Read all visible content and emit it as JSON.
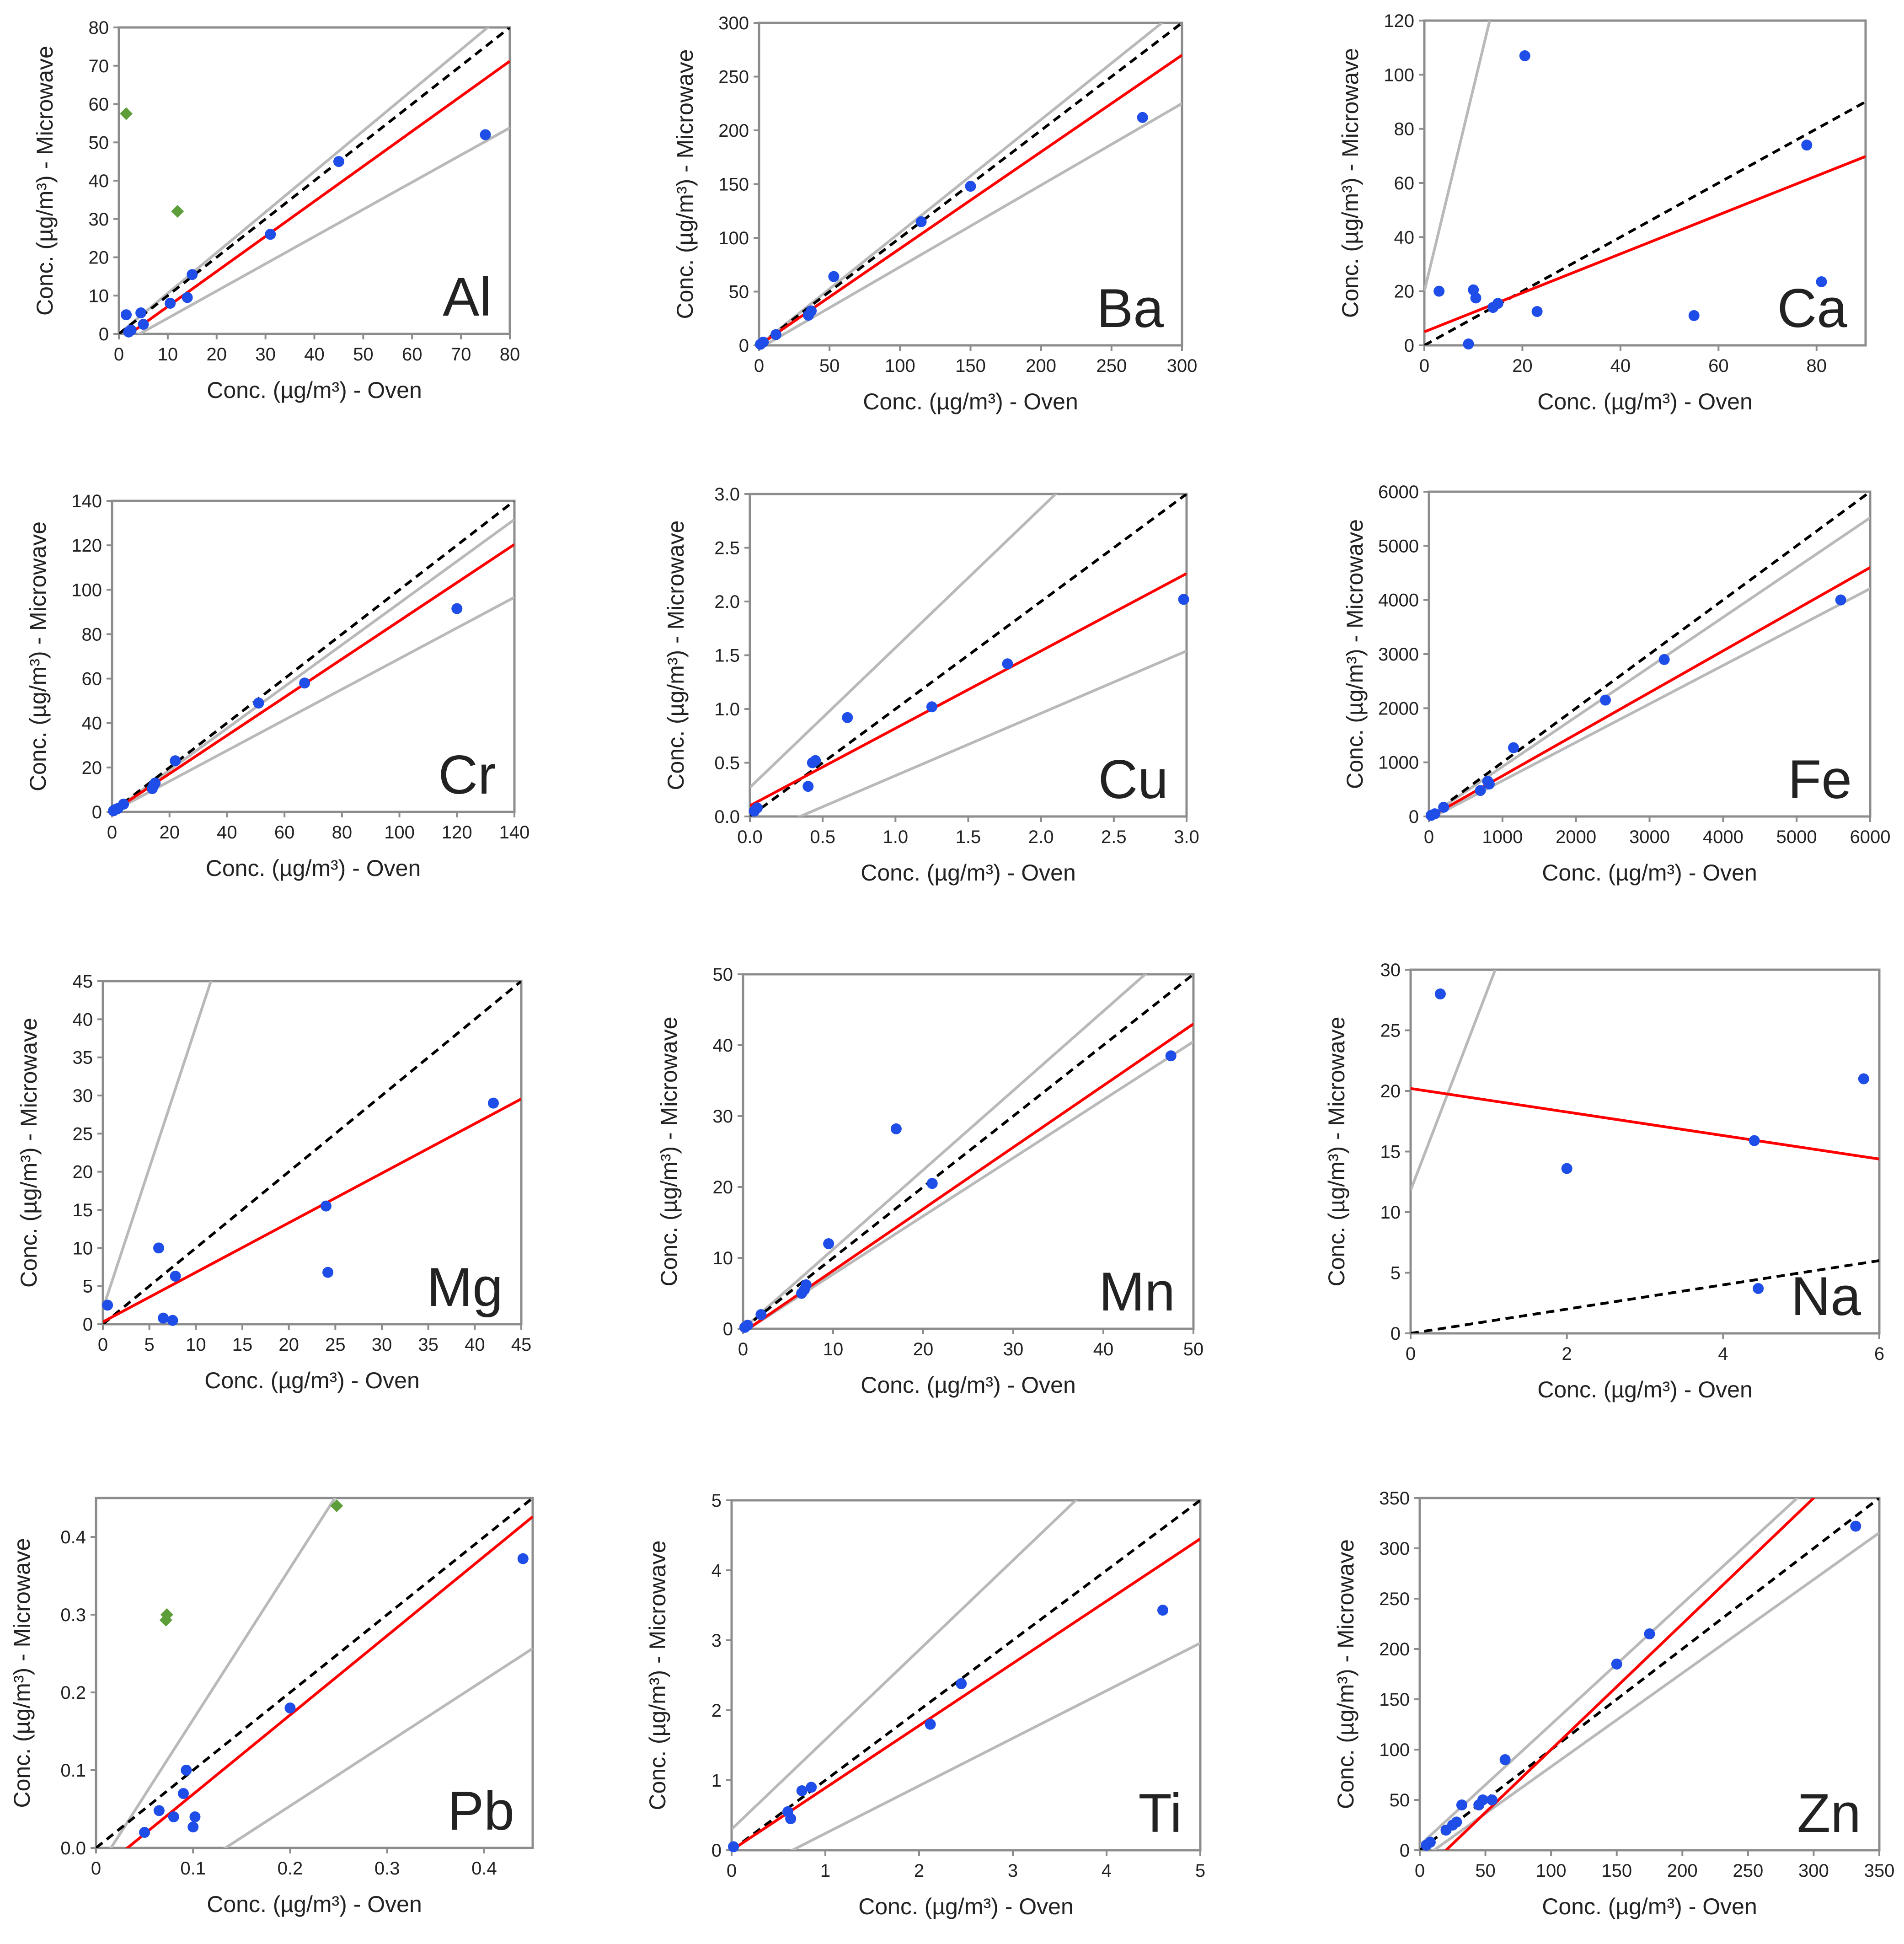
{
  "page": {
    "description_none": ""
  },
  "styles": {
    "frame_color": "#8c8c8c",
    "fit_color": "#ff0000",
    "identity_color": "#000000",
    "bound_color": "#b9b9b9",
    "point_color": "#1f4de8",
    "outlier_color": "#5e9e3a"
  },
  "chart_data": [
    {
      "type": "scatter",
      "element": "Al",
      "xlabel": "Conc. (µg/m³) - Oven",
      "ylabel": "Conc. (µg/m³) - Microwave",
      "xlim": [
        0,
        80
      ],
      "ylim": [
        0,
        80
      ],
      "xticks": [
        0,
        10,
        20,
        30,
        40,
        50,
        60,
        70,
        80
      ],
      "yticks": [
        0,
        10,
        20,
        30,
        40,
        50,
        60,
        70,
        80
      ],
      "tick_labels_x": [
        "0",
        "10",
        "20",
        "30",
        "40",
        "50",
        "60",
        "70",
        "80"
      ],
      "tick_labels_y": [
        "0",
        "10",
        "20",
        "30",
        "40",
        "50",
        "60",
        "70",
        "80"
      ],
      "points": [
        [
          1.5,
          5
        ],
        [
          2,
          0.5
        ],
        [
          2.5,
          1
        ],
        [
          4.5,
          5.5
        ],
        [
          5,
          2.5
        ],
        [
          10.5,
          8
        ],
        [
          14,
          9.5
        ],
        [
          15,
          15.5
        ],
        [
          31,
          26
        ],
        [
          45,
          45
        ],
        [
          75,
          52
        ]
      ],
      "outliers": [
        [
          1.5,
          57.5
        ],
        [
          12,
          32
        ]
      ],
      "fit": {
        "slope": 0.915,
        "intercept": -2
      },
      "upper": {
        "slope": 1.06,
        "intercept": 0
      },
      "lower": {
        "slope": 0.71,
        "intercept": -3
      }
    },
    {
      "type": "scatter",
      "element": "Ba",
      "xlabel": "Conc. (µg/m³) - Oven",
      "ylabel": "Conc. (µg/m³) - Microwave",
      "xlim": [
        0,
        300
      ],
      "ylim": [
        0,
        300
      ],
      "xticks": [
        0,
        50,
        100,
        150,
        200,
        250,
        300
      ],
      "yticks": [
        0,
        50,
        100,
        150,
        200,
        250,
        300
      ],
      "tick_labels_x": [
        "0",
        "50",
        "100",
        "150",
        "200",
        "250",
        "300"
      ],
      "tick_labels_y": [
        "0",
        "50",
        "100",
        "150",
        "200",
        "250",
        "300"
      ],
      "points": [
        [
          1,
          1
        ],
        [
          3,
          3
        ],
        [
          12,
          10
        ],
        [
          35,
          28
        ],
        [
          37,
          32
        ],
        [
          53,
          64
        ],
        [
          115,
          115
        ],
        [
          150,
          148
        ],
        [
          272,
          212
        ]
      ],
      "outliers": [],
      "fit": {
        "slope": 0.9,
        "intercept": 0
      },
      "upper": {
        "slope": 1.05,
        "intercept": 0
      },
      "lower": {
        "slope": 0.76,
        "intercept": -3
      }
    },
    {
      "type": "scatter",
      "element": "Ca",
      "xlabel": "Conc. (µg/m³) - Oven",
      "ylabel": "Conc. (µg/m³) - Microwave",
      "xlim": [
        0,
        90
      ],
      "ylim": [
        0,
        120
      ],
      "xticks": [
        0,
        20,
        40,
        60,
        80
      ],
      "yticks": [
        0,
        20,
        40,
        60,
        80,
        100,
        120
      ],
      "tick_labels_x": [
        "0",
        "20",
        "40",
        "60",
        "80"
      ],
      "tick_labels_y": [
        "0",
        "20",
        "40",
        "60",
        "80",
        "100",
        "120"
      ],
      "points": [
        [
          3,
          20
        ],
        [
          9,
          0.5
        ],
        [
          10,
          20.5
        ],
        [
          10.5,
          17.5
        ],
        [
          14,
          14
        ],
        [
          15,
          15.5
        ],
        [
          20.5,
          107
        ],
        [
          23,
          12.5
        ],
        [
          55,
          11
        ],
        [
          78,
          74
        ],
        [
          81,
          23.5
        ]
      ],
      "outliers": [],
      "fit": {
        "slope": 0.72,
        "intercept": 5
      },
      "upper": {
        "slope": 7.5,
        "intercept": 20
      },
      "lower": {
        "slope": -1,
        "intercept": 0
      }
    },
    {
      "type": "scatter",
      "element": "Cr",
      "xlabel": "Conc. (µg/m³) - Oven",
      "ylabel": "Conc. (µg/m³) - Microwave",
      "xlim": [
        0,
        140
      ],
      "ylim": [
        0,
        140
      ],
      "xticks": [
        0,
        20,
        40,
        60,
        80,
        100,
        120,
        140
      ],
      "yticks": [
        0,
        20,
        40,
        60,
        80,
        100,
        120,
        140
      ],
      "tick_labels_x": [
        "0",
        "20",
        "40",
        "60",
        "80",
        "100",
        "120",
        "140"
      ],
      "tick_labels_y": [
        "0",
        "20",
        "40",
        "60",
        "80",
        "100",
        "120",
        "140"
      ],
      "points": [
        [
          0.5,
          0.5
        ],
        [
          1,
          1
        ],
        [
          2,
          1.5
        ],
        [
          4,
          3.5
        ],
        [
          14,
          10.5
        ],
        [
          14.5,
          12
        ],
        [
          15,
          13
        ],
        [
          22,
          23
        ],
        [
          51,
          49
        ],
        [
          67,
          58
        ],
        [
          120,
          91.5
        ]
      ],
      "outliers": [],
      "fit": {
        "slope": 0.86,
        "intercept": 0
      },
      "upper": {
        "slope": 0.94,
        "intercept": 0
      },
      "lower": {
        "slope": 0.69,
        "intercept": 0
      }
    },
    {
      "type": "scatter",
      "element": "Cu",
      "xlabel": "Conc. (µg/m³) - Oven",
      "ylabel": "Conc. (µg/m³) - Microwave",
      "xlim": [
        0,
        3
      ],
      "ylim": [
        0,
        3
      ],
      "xticks": [
        0,
        0.5,
        1,
        1.5,
        2,
        2.5,
        3
      ],
      "yticks": [
        0,
        0.5,
        1,
        1.5,
        2,
        2.5,
        3
      ],
      "tick_labels_x": [
        "0.0",
        "0.5",
        "1.0",
        "1.5",
        "2.0",
        "2.5",
        "3.0"
      ],
      "tick_labels_y": [
        "0.0",
        "0.5",
        "1.0",
        "1.5",
        "2.0",
        "2.5",
        "3.0"
      ],
      "points": [
        [
          0.03,
          0.05
        ],
        [
          0.05,
          0.08
        ],
        [
          0.4,
          0.28
        ],
        [
          0.43,
          0.5
        ],
        [
          0.45,
          0.52
        ],
        [
          0.67,
          0.92
        ],
        [
          1.25,
          1.02
        ],
        [
          1.77,
          1.42
        ],
        [
          2.98,
          2.02
        ]
      ],
      "outliers": [],
      "fit": {
        "slope": 0.72,
        "intercept": 0.1
      },
      "upper": {
        "slope": 1.3,
        "intercept": 0.27
      },
      "lower": {
        "slope": 0.58,
        "intercept": -0.2
      }
    },
    {
      "type": "scatter",
      "element": "Fe",
      "xlabel": "Conc. (µg/m³) - Oven",
      "ylabel": "Conc. (µg/m³) - Microwave",
      "xlim": [
        0,
        6000
      ],
      "ylim": [
        0,
        6000
      ],
      "xticks": [
        0,
        1000,
        2000,
        3000,
        4000,
        5000,
        6000
      ],
      "yticks": [
        0,
        1000,
        2000,
        3000,
        4000,
        5000,
        6000
      ],
      "tick_labels_x": [
        "0",
        "1000",
        "2000",
        "3000",
        "4000",
        "5000",
        "6000"
      ],
      "tick_labels_y": [
        "0",
        "1000",
        "2000",
        "3000",
        "4000",
        "5000",
        "6000"
      ],
      "points": [
        [
          30,
          20
        ],
        [
          80,
          50
        ],
        [
          200,
          170
        ],
        [
          700,
          480
        ],
        [
          800,
          650
        ],
        [
          820,
          600
        ],
        [
          1150,
          1270
        ],
        [
          2400,
          2150
        ],
        [
          3200,
          2900
        ],
        [
          5600,
          4000
        ]
      ],
      "outliers": [],
      "fit": {
        "slope": 0.77,
        "intercept": -20
      },
      "upper": {
        "slope": 0.92,
        "intercept": 0
      },
      "lower": {
        "slope": 0.71,
        "intercept": -50
      }
    },
    {
      "type": "scatter",
      "element": "Mg",
      "xlabel": "Conc. (µg/m³) - Oven",
      "ylabel": "Conc. (µg/m³) - Microwave",
      "xlim": [
        0,
        45
      ],
      "ylim": [
        0,
        45
      ],
      "xticks": [
        0,
        5,
        10,
        15,
        20,
        25,
        30,
        35,
        40,
        45
      ],
      "yticks": [
        0,
        5,
        10,
        15,
        20,
        25,
        30,
        35,
        40,
        45
      ],
      "tick_labels_x": [
        "0",
        "5",
        "10",
        "15",
        "20",
        "25",
        "30",
        "35",
        "40",
        "45"
      ],
      "tick_labels_y": [
        "0",
        "5",
        "10",
        "15",
        "20",
        "25",
        "30",
        "35",
        "40",
        "45"
      ],
      "points": [
        [
          0.5,
          2.5
        ],
        [
          6,
          10
        ],
        [
          6.5,
          0.8
        ],
        [
          7.5,
          0.5
        ],
        [
          7.8,
          6.3
        ],
        [
          24,
          15.5
        ],
        [
          24.2,
          6.8
        ],
        [
          42,
          29
        ]
      ],
      "outliers": [],
      "fit": {
        "slope": 0.65,
        "intercept": 0.3
      },
      "upper": {
        "slope": 3.7,
        "intercept": 2
      },
      "lower": {
        "slope": -1,
        "intercept": 0
      }
    },
    {
      "type": "scatter",
      "element": "Mn",
      "xlabel": "Conc. (µg/m³) - Oven",
      "ylabel": "Conc. (µg/m³) - Microwave",
      "xlim": [
        0,
        50
      ],
      "ylim": [
        0,
        50
      ],
      "xticks": [
        0,
        10,
        20,
        30,
        40,
        50
      ],
      "yticks": [
        0,
        10,
        20,
        30,
        40,
        50
      ],
      "tick_labels_x": [
        "0",
        "10",
        "20",
        "30",
        "40",
        "50"
      ],
      "tick_labels_y": [
        "0",
        "10",
        "20",
        "30",
        "40",
        "50"
      ],
      "points": [
        [
          0.2,
          0.2
        ],
        [
          0.5,
          0.5
        ],
        [
          2,
          2
        ],
        [
          6.5,
          5
        ],
        [
          6.8,
          5.5
        ],
        [
          7,
          6.2
        ],
        [
          9.5,
          12
        ],
        [
          17,
          28.2
        ],
        [
          21,
          20.5
        ],
        [
          47.5,
          38.5
        ]
      ],
      "outliers": [],
      "fit": {
        "slope": 0.87,
        "intercept": -0.5
      },
      "upper": {
        "slope": 1.12,
        "intercept": 0
      },
      "lower": {
        "slope": 0.82,
        "intercept": -0.5
      }
    },
    {
      "type": "scatter",
      "element": "Na",
      "xlabel": "Conc. (µg/m³) - Oven",
      "ylabel": "Conc. (µg/m³) - Microwave",
      "xlim": [
        0,
        6
      ],
      "ylim": [
        0,
        30
      ],
      "xticks": [
        0,
        2,
        4,
        6
      ],
      "yticks": [
        0,
        5,
        10,
        15,
        20,
        25,
        30
      ],
      "tick_labels_x": [
        "0",
        "2",
        "4",
        "6"
      ],
      "tick_labels_y": [
        "0",
        "5",
        "10",
        "15",
        "20",
        "25",
        "30"
      ],
      "points": [
        [
          0.38,
          28
        ],
        [
          2,
          13.6
        ],
        [
          4.4,
          15.9
        ],
        [
          4.45,
          3.7
        ],
        [
          5.8,
          21
        ]
      ],
      "outliers": [],
      "fit": {
        "slope": -0.97,
        "intercept": 20.2
      },
      "upper": {
        "slope": 16.8,
        "intercept": 11.8
      },
      "lower": {
        "slope": -1,
        "intercept": 0
      }
    },
    {
      "type": "scatter",
      "element": "Pb",
      "xlabel": "Conc. (µg/m³) - Oven",
      "ylabel": "Conc. (µg/m³) - Microwave",
      "xlim": [
        0,
        0.45
      ],
      "ylim": [
        0,
        0.45
      ],
      "xticks": [
        0,
        0.1,
        0.2,
        0.3,
        0.4
      ],
      "yticks": [
        0,
        0.1,
        0.2,
        0.3,
        0.4
      ],
      "tick_labels_x": [
        "0",
        "0.1",
        "0.2",
        "0.3",
        "0.4"
      ],
      "tick_labels_y": [
        "0.0",
        "0.1",
        "0.2",
        "0.3",
        "0.4"
      ],
      "points": [
        [
          0.05,
          0.02
        ],
        [
          0.065,
          0.048
        ],
        [
          0.08,
          0.04
        ],
        [
          0.09,
          0.07
        ],
        [
          0.093,
          0.1
        ],
        [
          0.1,
          0.027
        ],
        [
          0.102,
          0.04
        ],
        [
          0.2,
          0.18
        ],
        [
          0.44,
          0.372
        ]
      ],
      "outliers": [
        [
          0.072,
          0.293
        ],
        [
          0.073,
          0.3
        ],
        [
          0.248,
          0.44
        ]
      ],
      "fit": {
        "slope": 1.02,
        "intercept": -0.033
      },
      "upper": {
        "slope": 1.95,
        "intercept": -0.03
      },
      "lower": {
        "slope": 0.81,
        "intercept": -0.108
      }
    },
    {
      "type": "scatter",
      "element": "Ti",
      "xlabel": "Conc. (µg/m³) - Oven",
      "ylabel": "Conc. (µg/m³) - Microwave",
      "xlim": [
        0,
        5
      ],
      "ylim": [
        0,
        5
      ],
      "xticks": [
        0,
        1,
        2,
        3,
        4,
        5
      ],
      "yticks": [
        0,
        1,
        2,
        3,
        4,
        5
      ],
      "tick_labels_x": [
        "0",
        "1",
        "2",
        "3",
        "4",
        "5"
      ],
      "tick_labels_y": [
        "0",
        "1",
        "2",
        "3",
        "4",
        "5"
      ],
      "points": [
        [
          0.02,
          0.05
        ],
        [
          0.6,
          0.55
        ],
        [
          0.63,
          0.45
        ],
        [
          0.75,
          0.85
        ],
        [
          0.85,
          0.9
        ],
        [
          2.12,
          1.8
        ],
        [
          2.45,
          2.38
        ],
        [
          4.6,
          3.43
        ]
      ],
      "outliers": [],
      "fit": {
        "slope": 0.89,
        "intercept": 0
      },
      "upper": {
        "slope": 1.28,
        "intercept": 0.3
      },
      "lower": {
        "slope": 0.68,
        "intercept": -0.44
      }
    },
    {
      "type": "scatter",
      "element": "Zn",
      "xlabel": "Conc. (µg/m³) - Oven",
      "ylabel": "Conc. (µg/m³) - Microwave",
      "xlim": [
        0,
        350
      ],
      "ylim": [
        0,
        350
      ],
      "xticks": [
        0,
        50,
        100,
        150,
        200,
        250,
        300,
        350
      ],
      "yticks": [
        0,
        50,
        100,
        150,
        200,
        250,
        300,
        350
      ],
      "tick_labels_x": [
        "0",
        "50",
        "100",
        "150",
        "200",
        "250",
        "300",
        "350"
      ],
      "tick_labels_y": [
        "0",
        "50",
        "100",
        "150",
        "200",
        "250",
        "300",
        "350"
      ],
      "points": [
        [
          5,
          5
        ],
        [
          8,
          8
        ],
        [
          20,
          20
        ],
        [
          25,
          25
        ],
        [
          28,
          28
        ],
        [
          32,
          45
        ],
        [
          45,
          45
        ],
        [
          48,
          50
        ],
        [
          55,
          50
        ],
        [
          65,
          90
        ],
        [
          150,
          185
        ],
        [
          175,
          215
        ],
        [
          332,
          322
        ]
      ],
      "outliers": [],
      "fit": {
        "slope": 1.25,
        "intercept": -25
      },
      "upper": {
        "slope": 1.2,
        "intercept": 5
      },
      "lower": {
        "slope": 0.93,
        "intercept": -10
      }
    }
  ]
}
